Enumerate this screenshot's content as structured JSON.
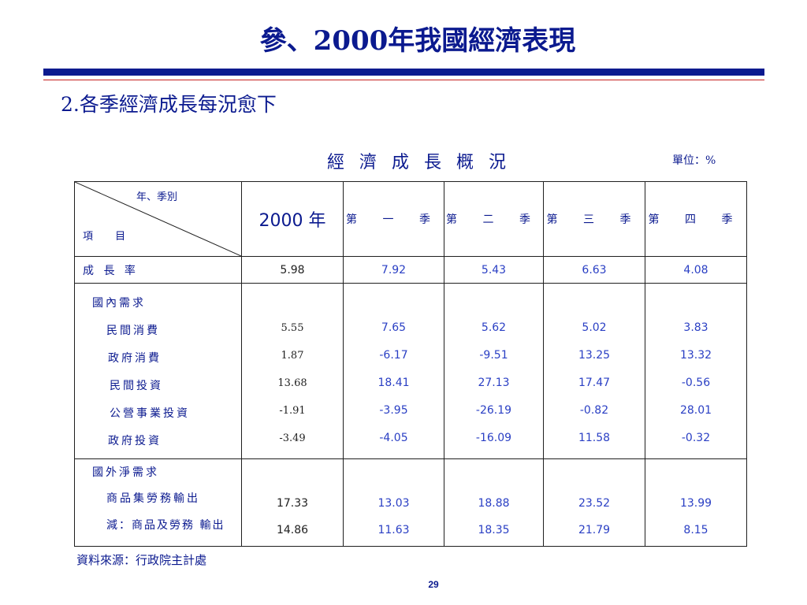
{
  "slide": {
    "title": "參、2000年我國經濟表現",
    "subtitle": "2.各季經濟成長每況愈下",
    "table_title": "經 濟 成 長 概 況",
    "unit": "單位：%",
    "source": "資料來源：行政院主計處",
    "page_number": "29"
  },
  "table": {
    "corner_top": "年、季別",
    "corner_bottom": "項 目",
    "headers": [
      "2000 年",
      "第 一 季",
      "第 二 季",
      "第 三 季",
      "第 四 季"
    ],
    "growth": {
      "label": "成 長 率",
      "values": [
        "5.98",
        "7.92",
        "5.43",
        "6.63",
        "4.08"
      ]
    },
    "domestic": {
      "label": "國內需求",
      "rows": [
        {
          "label": "民間消費",
          "values": [
            "5.55",
            "7.65",
            "5.62",
            "5.02",
            "3.83"
          ]
        },
        {
          "label": "政府消費",
          "values": [
            "1.87",
            "-6.17",
            "-9.51",
            "13.25",
            "13.32"
          ]
        },
        {
          "label": "民間投資",
          "values": [
            "13.68",
            "18.41",
            "27.13",
            "17.47",
            "-0.56"
          ]
        },
        {
          "label": "公營事業投資",
          "values": [
            "-1.91",
            "-3.95",
            "-26.19",
            "-0.82",
            "28.01"
          ]
        },
        {
          "label": "政府投資",
          "values": [
            "-3.49",
            "-4.05",
            "-16.09",
            "11.58",
            "-0.32"
          ]
        }
      ]
    },
    "external": {
      "label": "國外淨需求",
      "rows": [
        {
          "label": "商品集勞務輸出",
          "values": [
            "17.33",
            "13.03",
            "18.88",
            "23.52",
            "13.99"
          ]
        },
        {
          "label": "減：商品及勞務 輸出",
          "values": [
            "14.86",
            "11.63",
            "18.35",
            "21.79",
            "8.15"
          ]
        }
      ]
    }
  }
}
